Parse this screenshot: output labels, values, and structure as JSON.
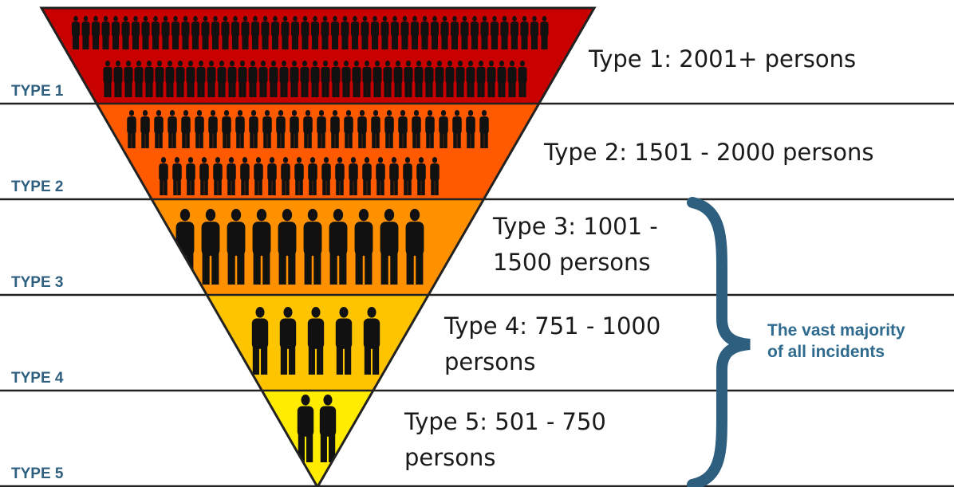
{
  "levels": [
    {
      "label": "TYPE 1",
      "description": [
        "Type 1: 2001+ persons"
      ]
    },
    {
      "label": "TYPE 2",
      "description": [
        "Type 2: 1501 - 2000 persons"
      ]
    },
    {
      "label": "TYPE 3",
      "description": [
        "Type 3: 1001 -",
        "1500 persons"
      ]
    },
    {
      "label": "TYPE 4",
      "description": [
        "Type 4: 751 - 1000",
        "persons"
      ]
    },
    {
      "label": "TYPE 5",
      "description": [
        "Type 5: 501 - 750",
        "persons"
      ]
    }
  ],
  "brace": {
    "text": [
      "The vast majority",
      "of all incidents"
    ]
  }
}
